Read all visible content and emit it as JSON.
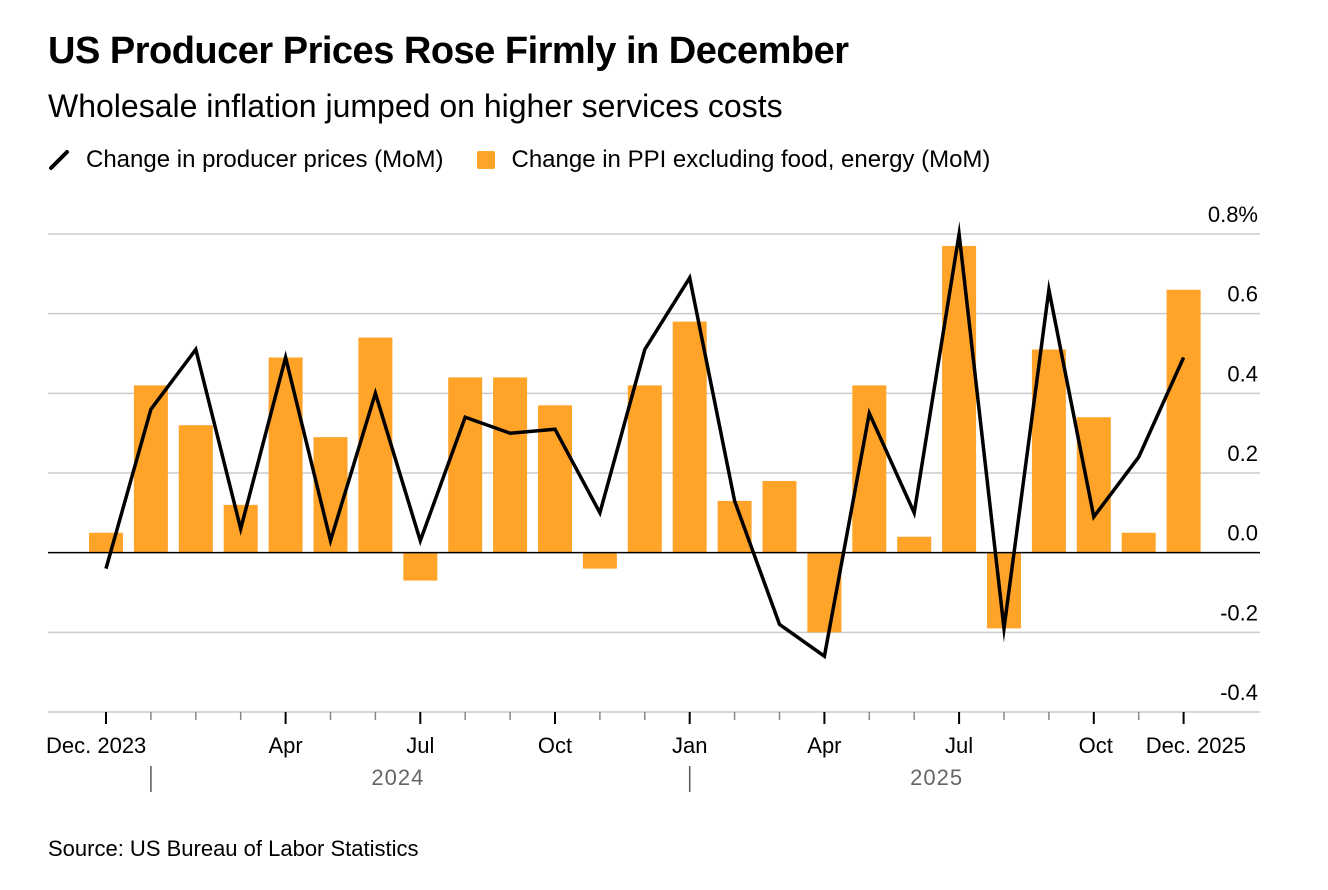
{
  "title": "US Producer Prices Rose Firmly in December",
  "subtitle": "Wholesale inflation jumped on higher services costs",
  "legend": {
    "line_label": "Change in producer prices (MoM)",
    "bar_label": "Change in PPI excluding food, energy (MoM)"
  },
  "source": "Source: US Bureau of Labor Statistics",
  "colors": {
    "bar": "#ffa329",
    "line": "#000000",
    "grid": "#cccccc",
    "axis": "#000000"
  },
  "chart_data": {
    "type": "bar",
    "categories": [
      "Dec 2023",
      "Jan 2024",
      "Feb 2024",
      "Mar 2024",
      "Apr 2024",
      "May 2024",
      "Jun 2024",
      "Jul 2024",
      "Aug 2024",
      "Sep 2024",
      "Oct 2024",
      "Nov 2024",
      "Dec 2024",
      "Jan 2025",
      "Feb 2025",
      "Mar 2025",
      "Apr 2025",
      "May 2025",
      "Jun 2025",
      "Jul 2025",
      "Aug 2025",
      "Sep 2025",
      "Oct 2025",
      "Nov 2025",
      "Dec 2025"
    ],
    "series": [
      {
        "name": "Change in producer prices (MoM)",
        "kind": "line",
        "values": [
          -0.04,
          0.36,
          0.51,
          0.06,
          0.49,
          0.03,
          0.4,
          0.03,
          0.34,
          0.3,
          0.31,
          0.1,
          0.51,
          0.69,
          0.13,
          -0.18,
          -0.26,
          0.35,
          0.1,
          0.8,
          -0.19,
          0.66,
          0.09,
          0.24,
          0.49
        ]
      },
      {
        "name": "Change in PPI excluding food, energy (MoM)",
        "kind": "bar",
        "values": [
          0.05,
          0.42,
          0.32,
          0.12,
          0.49,
          0.29,
          0.54,
          -0.07,
          0.44,
          0.44,
          0.37,
          -0.04,
          0.42,
          0.58,
          0.13,
          0.18,
          -0.2,
          0.42,
          0.04,
          0.77,
          -0.19,
          0.51,
          0.34,
          0.05,
          0.66
        ]
      }
    ],
    "ylim": [
      -0.4,
      0.8
    ],
    "yticks": [
      -0.4,
      -0.2,
      0.0,
      0.2,
      0.4,
      0.6,
      0.8
    ],
    "ytick_labels": [
      "-0.4",
      "-0.2",
      "0.0",
      "0.2",
      "0.4",
      "0.6",
      "0.8%"
    ],
    "xtick_labels": [
      {
        "index": 0,
        "label": "Dec. 2023"
      },
      {
        "index": 4,
        "label": "Apr"
      },
      {
        "index": 7,
        "label": "Jul"
      },
      {
        "index": 10,
        "label": "Oct"
      },
      {
        "index": 13,
        "label": "Jan"
      },
      {
        "index": 16,
        "label": "Apr"
      },
      {
        "index": 19,
        "label": "Jul"
      },
      {
        "index": 22,
        "label": "Oct"
      },
      {
        "index": 24,
        "label": "Dec. 2025"
      }
    ],
    "year_labels": [
      {
        "label": "2024",
        "start": 1,
        "end": 12
      },
      {
        "label": "2025",
        "start": 13,
        "end": 24
      }
    ],
    "grid": true,
    "legend_position": "top-left",
    "xlabel": "",
    "ylabel": ""
  }
}
